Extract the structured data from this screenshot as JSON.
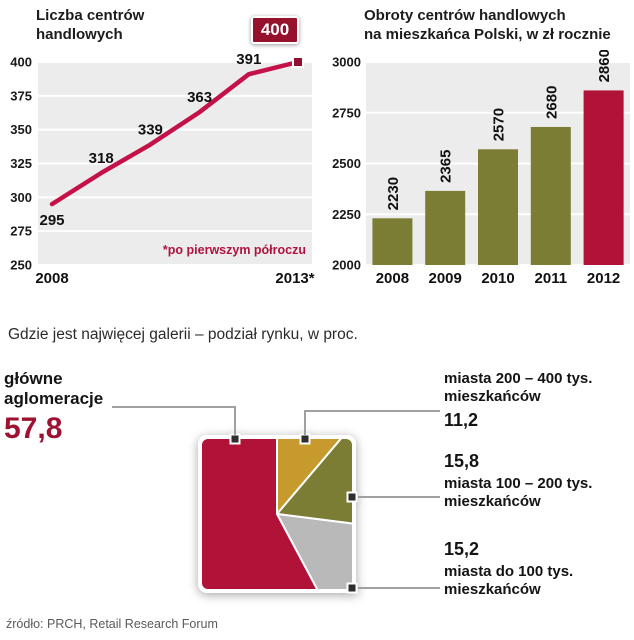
{
  "source": "źródło: PRCH, Retail Research Forum",
  "chart_data": [
    {
      "id": "shopping-centers-count",
      "type": "line",
      "title": "Liczba centrów handlowych",
      "title_lines": [
        "Liczba centrów",
        "handlowych"
      ],
      "x": [
        "2008",
        "2009",
        "2010",
        "2011",
        "2012",
        "2013*"
      ],
      "values": [
        295,
        318,
        339,
        363,
        391,
        400
      ],
      "shown_x_labels": [
        "2008",
        "2013*"
      ],
      "ylim": [
        250,
        400
      ],
      "yticks": [
        250,
        275,
        300,
        325,
        350,
        375,
        400
      ],
      "annotation": "*po pierwszym półroczu",
      "badge_value": "400",
      "grid": true,
      "colors": {
        "line": "#c41148",
        "badge_bg": "#96112b",
        "plot_bg": "#ececec",
        "grid": "#ffffff",
        "annotation": "#b01340",
        "marker": "#8f1030"
      }
    },
    {
      "id": "turnover-per-capita",
      "type": "bar",
      "title": "Obroty centrów handlowych na mieszkańca Polski, w zł rocznie",
      "title_lines": [
        "Obroty centrów handlowych",
        "na mieszkańca Polski, w zł rocznie"
      ],
      "categories": [
        "2008",
        "2009",
        "2010",
        "2011",
        "2012"
      ],
      "values": [
        2230,
        2365,
        2570,
        2680,
        2860
      ],
      "ylim": [
        2000,
        3000
      ],
      "yticks": [
        2000,
        2250,
        2500,
        2750,
        3000
      ],
      "highlight_index": 4,
      "grid": true,
      "colors": {
        "bar": "#7b7d35",
        "bar_highlight": "#b11238",
        "plot_bg": "#ececec",
        "grid": "#ffffff"
      }
    },
    {
      "id": "market-share-by-city-size",
      "type": "pie",
      "shape": "square",
      "title": "Gdzie jest najwięcej galerii – podział rynku, w proc.",
      "slices": [
        {
          "label": "miasta 200 – 400 tys. mieszkańców",
          "value": 11.2,
          "display": "11,2",
          "color": "#c69a2c"
        },
        {
          "label": "miasta 100 – 200 tys. mieszkańców",
          "value": 15.8,
          "display": "15,8",
          "color": "#7b7d35"
        },
        {
          "label": "miasta do 100 tys. mieszkańców",
          "value": 15.2,
          "display": "15,2",
          "color": "#b9b9b9"
        },
        {
          "label": "główne aglomeracje",
          "value": 57.8,
          "display": "57,8",
          "color": "#b11238"
        }
      ]
    }
  ],
  "pie_annotations": {
    "main": {
      "line1": "główne",
      "line2": "aglomeracje",
      "value": "57,8"
    },
    "mid_cities": {
      "line1": "miasta 200 – 400 tys.",
      "line2": "mieszkańców",
      "value": "11,2"
    },
    "small_mid_cities": {
      "value": "15,8",
      "line1": "miasta 100 – 200 tys.",
      "line2": "mieszkańców"
    },
    "small_cities": {
      "value": "15,2",
      "line1": "miasta do 100 tys.",
      "line2": "mieszkańców"
    }
  }
}
